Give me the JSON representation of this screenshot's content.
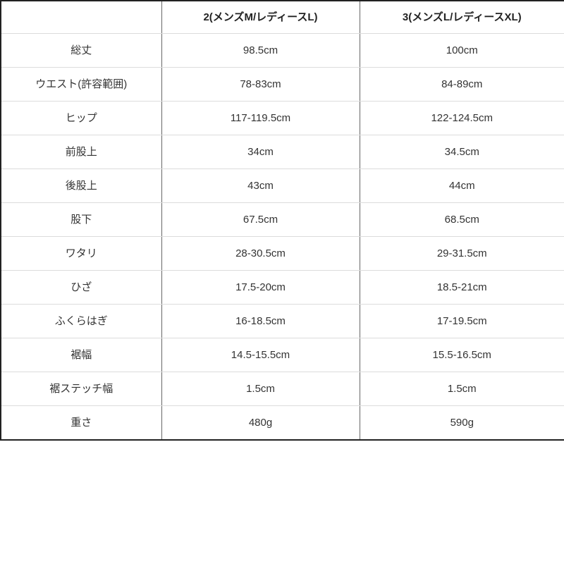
{
  "chart_data": {
    "type": "table",
    "title": "",
    "columns": [
      "",
      "2(メンズM/レディースL)",
      "3(メンズL/レディースXL)"
    ],
    "rows": [
      {
        "label": "総丈",
        "values": [
          "98.5cm",
          "100cm"
        ]
      },
      {
        "label": "ウエスト(許容範囲)",
        "values": [
          "78-83cm",
          "84-89cm"
        ]
      },
      {
        "label": "ヒップ",
        "values": [
          "117-119.5cm",
          "122-124.5cm"
        ]
      },
      {
        "label": "前股上",
        "values": [
          "34cm",
          "34.5cm"
        ]
      },
      {
        "label": "後股上",
        "values": [
          "43cm",
          "44cm"
        ]
      },
      {
        "label": "股下",
        "values": [
          "67.5cm",
          "68.5cm"
        ]
      },
      {
        "label": "ワタリ",
        "values": [
          "28-30.5cm",
          "29-31.5cm"
        ]
      },
      {
        "label": "ひざ",
        "values": [
          "17.5-20cm",
          "18.5-21cm"
        ]
      },
      {
        "label": "ふくらはぎ",
        "values": [
          "16-18.5cm",
          "17-19.5cm"
        ]
      },
      {
        "label": "裾幅",
        "values": [
          "14.5-15.5cm",
          "15.5-16.5cm"
        ]
      },
      {
        "label": "裾ステッチ幅",
        "values": [
          "1.5cm",
          "1.5cm"
        ]
      },
      {
        "label": "重さ",
        "values": [
          "480g",
          "590g"
        ]
      }
    ],
    "layout": {
      "legend": "none",
      "grid": "on",
      "header_row": true,
      "first_column_is_labels": true
    }
  },
  "colors": {
    "background": "#ffffff",
    "outer_border": "#222222",
    "column_separator": "#666666",
    "row_separator": "#dcdcdc",
    "header_text": "#222222",
    "body_text": "#333333"
  }
}
